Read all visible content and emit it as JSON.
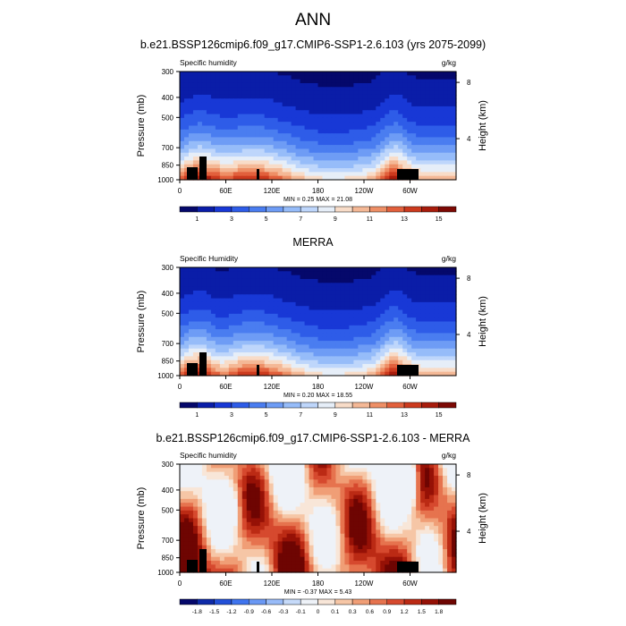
{
  "page": {
    "title": "ANN"
  },
  "panels": [
    {
      "title": "b.e21.BSSP126cmip6.f09_g17.CMIP6-SSP1-2.6.103 (yrs 2075-2099)",
      "var_label": "Specific humidity",
      "units": "g/kg",
      "stats": "MIN =   0.25  MAX =  21.08"
    },
    {
      "title": "MERRA",
      "var_label": "Specific Humidity",
      "units": "g/kg",
      "stats": "MIN =   0.20  MAX =  18.55"
    },
    {
      "title": "b.e21.BSSP126cmip6.f09_g17.CMIP6-SSP1-2.6.103 - MERRA",
      "var_label": "Specific humidity",
      "units": "g/kg",
      "stats": "MIN =  -0.37  MAX =   5.43"
    }
  ],
  "chart_data": [
    {
      "type": "heatmap",
      "title": "b.e21.BSSP126cmip6.f09_g17.CMIP6-SSP1-2.6.103 (yrs 2075-2099)",
      "ylabel": "Pressure (mb)",
      "y2label": "Height (km)",
      "x_ticks": [
        "0",
        "60E",
        "120E",
        "180",
        "120W",
        "60W"
      ],
      "y_ticks": [
        "300",
        "400",
        "500",
        "700",
        "850",
        "1000"
      ],
      "y2_ticks": [
        "8",
        "4"
      ],
      "ylim": [
        1000,
        300
      ],
      "y_scale": "log",
      "colorbar": [
        "1",
        "3",
        "5",
        "7",
        "9",
        "11",
        "13",
        "15"
      ],
      "min": 0.25,
      "max": 21.08
    },
    {
      "type": "heatmap",
      "title": "MERRA",
      "ylabel": "Pressure (mb)",
      "y2label": "Height (km)",
      "x_ticks": [
        "0",
        "60E",
        "120E",
        "180",
        "120W",
        "60W"
      ],
      "y_ticks": [
        "300",
        "400",
        "500",
        "700",
        "850",
        "1000"
      ],
      "y2_ticks": [
        "8",
        "4"
      ],
      "ylim": [
        1000,
        300
      ],
      "y_scale": "log",
      "colorbar": [
        "1",
        "3",
        "5",
        "7",
        "9",
        "11",
        "13",
        "15"
      ],
      "min": 0.2,
      "max": 18.55
    },
    {
      "type": "heatmap",
      "title": "b.e21.BSSP126cmip6.f09_g17.CMIP6-SSP1-2.6.103 - MERRA",
      "ylabel": "Pressure (mb)",
      "y2label": "Height (km)",
      "x_ticks": [
        "0",
        "60E",
        "120E",
        "180",
        "120W",
        "60W"
      ],
      "y_ticks": [
        "300",
        "400",
        "500",
        "700",
        "850",
        "1000"
      ],
      "y2_ticks": [
        "8",
        "4"
      ],
      "ylim": [
        1000,
        300
      ],
      "y_scale": "log",
      "colorbar": [
        "-1.8",
        "-1.5",
        "-1.2",
        "-0.9",
        "-0.6",
        "-0.3",
        "-0.1",
        "0",
        "0.1",
        "0.3",
        "0.6",
        "0.9",
        "1.2",
        "1.5",
        "1.8"
      ],
      "min": -0.37,
      "max": 5.43
    }
  ],
  "colors": {
    "abs_palette": [
      "#05086b",
      "#0a1da8",
      "#1838d6",
      "#2e5ce8",
      "#4a7df0",
      "#6e9cf5",
      "#96bcf9",
      "#bed6fb",
      "#e6eef8",
      "#f8dcc8",
      "#f4b896",
      "#ee8f66",
      "#e2603c",
      "#cc3a1e",
      "#a81c0c",
      "#7d0904"
    ],
    "diff_palette": [
      "#05086b",
      "#0e2aa8",
      "#2250d8",
      "#3f74ee",
      "#6a98f4",
      "#98bbf8",
      "#c6daf9",
      "#eef2f8",
      "#f8e6d8",
      "#f6c6a6",
      "#f09e76",
      "#e6734e",
      "#d6492e",
      "#bb2a14",
      "#961106",
      "#6e0502"
    ],
    "land": "#000000"
  }
}
